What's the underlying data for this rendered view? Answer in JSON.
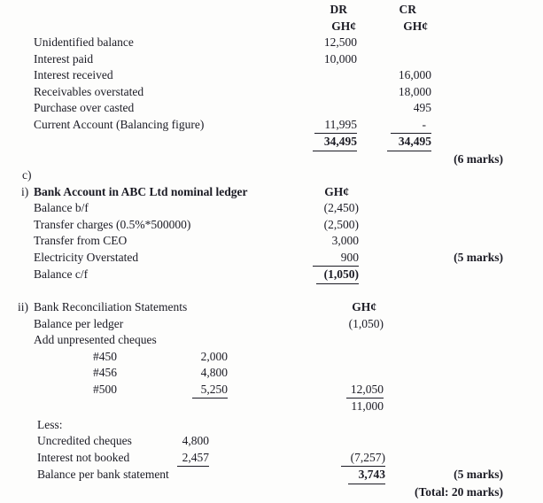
{
  "section_a": {
    "col_dr": "DR",
    "col_cr": "CR",
    "currency": "GH¢",
    "rows": [
      {
        "label": "Unidentified balance",
        "dr": "12,500",
        "cr": ""
      },
      {
        "label": "Interest paid",
        "dr": "10,000",
        "cr": ""
      },
      {
        "label": "Interest received",
        "dr": "",
        "cr": "16,000"
      },
      {
        "label": "Receivables overstated",
        "dr": "",
        "cr": "18,000"
      },
      {
        "label": "Purchase over casted",
        "dr": "",
        "cr": "495"
      },
      {
        "label": "Current Account (Balancing figure)",
        "dr": "11,995",
        "cr": "-"
      }
    ],
    "total_dr": "34,495",
    "total_cr": "34,495",
    "marks": "(6 marks)"
  },
  "section_c": {
    "marker": "c)",
    "part_i": {
      "marker": "i)",
      "title": "Bank Account in ABC Ltd nominal ledger",
      "currency": "GH¢",
      "rows": [
        {
          "label": "Balance b/f",
          "amount": "(2,450)"
        },
        {
          "label": "Transfer charges (0.5%*500000)",
          "amount": "(2,500)"
        },
        {
          "label": "Transfer from CEO",
          "amount": "3,000"
        },
        {
          "label": "Electricity Overstated",
          "amount": "900",
          "marks": "(5 marks)"
        },
        {
          "label": "Balance c/f",
          "amount": "(1,050)"
        }
      ]
    },
    "part_ii": {
      "marker": "ii)",
      "title": "Bank Reconciliation Statements",
      "currency": "GH¢",
      "balance_per_ledger_label": "Balance per ledger",
      "balance_per_ledger_amount": "(1,050)",
      "add_unpresented_label": "Add unpresented cheques",
      "cheques": [
        {
          "no": "#450",
          "amount": "2,000"
        },
        {
          "no": "#456",
          "amount": "4,800"
        },
        {
          "no": "#500",
          "amount": "5,250"
        }
      ],
      "cheques_total": "12,050",
      "subtotal": "11,000",
      "less_label": "Less:",
      "less_rows": [
        {
          "label": "Uncredited cheques",
          "amount": "4,800"
        },
        {
          "label": "Interest not booked",
          "amount": "2,457"
        }
      ],
      "less_total": "(7,257)",
      "balance_label": "Balance per bank statement",
      "balance_amount": "3,743",
      "marks": "(5 marks)",
      "total_marks": "(Total: 20 marks)"
    }
  }
}
